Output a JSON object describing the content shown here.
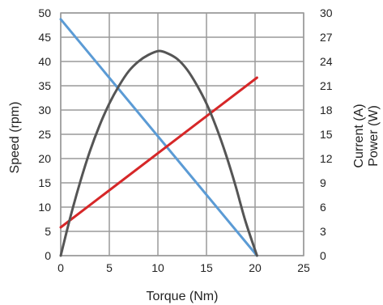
{
  "chart_data": {
    "type": "line",
    "xlabel": "Torque (Nm)",
    "ylabel_left": "Speed (rpm)",
    "ylabel_right_1": "Current (A)",
    "ylabel_right_2": "Power (W)",
    "xlim": [
      0,
      25
    ],
    "ylim_left": [
      0,
      50
    ],
    "ylim_right": [
      0,
      30
    ],
    "x_ticks": [
      "0",
      "5",
      "10",
      "15",
      "20",
      "25"
    ],
    "y_ticks_left": [
      "0",
      "5",
      "10",
      "15",
      "20",
      "25",
      "30",
      "35",
      "40",
      "45",
      "50"
    ],
    "y_ticks_right": [
      "0",
      "3",
      "6",
      "9",
      "12",
      "15",
      "18",
      "21",
      "24",
      "27",
      "30"
    ],
    "grid": true,
    "series": [
      {
        "axis": "left",
        "color": "#5b9bd5",
        "x": [
          0,
          20.2
        ],
        "y": [
          48.7,
          0
        ]
      },
      {
        "axis": "right",
        "color": "#d62728",
        "x": [
          0,
          20.2
        ],
        "y": [
          3.5,
          22.0
        ]
      },
      {
        "axis": "right",
        "color": "#555555",
        "x": [
          0,
          1,
          2,
          3,
          4,
          5,
          6,
          7,
          8,
          9,
          10.1,
          11,
          12,
          13,
          14,
          15,
          16,
          17,
          18,
          19,
          20.2
        ],
        "y": [
          0,
          4.8,
          9.1,
          12.9,
          16.1,
          18.8,
          21.0,
          22.8,
          24.0,
          24.8,
          25.3,
          25.0,
          24.3,
          23.0,
          21.1,
          18.8,
          15.9,
          12.5,
          8.6,
          4.3,
          0
        ]
      }
    ]
  }
}
